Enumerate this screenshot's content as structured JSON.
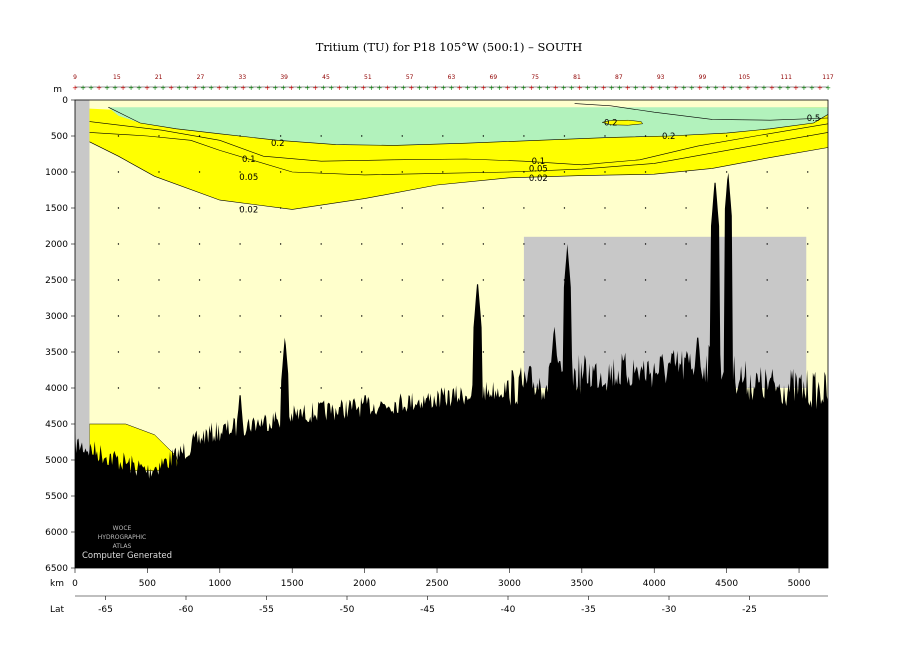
{
  "chart_data": {
    "type": "contour_section",
    "title": "Tritium (TU) for P18 105°W (500:1) – SOUTH",
    "y_unit": "m",
    "x_unit": "km",
    "lat_label": "Lat",
    "x_range": [
      0,
      5200
    ],
    "y_range": [
      0,
      6500
    ],
    "y_ticks": [
      0,
      500,
      1000,
      1500,
      2000,
      2500,
      3000,
      3500,
      4000,
      4500,
      5000,
      5500,
      6000,
      6500
    ],
    "x_ticks": [
      0,
      500,
      1000,
      1500,
      2000,
      2500,
      3000,
      3500,
      4000,
      4500,
      5000
    ],
    "lat_ticks": [
      -65,
      -60,
      -55,
      -50,
      -45,
      -40,
      -35,
      -30,
      -25
    ],
    "station_numbers": [
      "9",
      "15",
      "21",
      "27",
      "33",
      "39",
      "45",
      "51",
      "57",
      "63",
      "69",
      "75",
      "81",
      "87",
      "93",
      "99",
      "105",
      "111",
      "117"
    ],
    "contour_levels": [
      "0.5",
      "0.2",
      "0.2",
      "0.2",
      "0.1",
      "0.1",
      "0.05",
      "0.05",
      "0.02",
      "0.02"
    ],
    "colors": {
      "above_0_2": "#b2f2bc",
      "from_0_02_to_0_2": "#ffff00",
      "below_0_02": "#ffffcc",
      "no_data": "#c8c8c8",
      "bathymetry": "#000000"
    },
    "watermark": [
      "WOCE",
      "HYDROGRAPHIC",
      "ATLAS"
    ],
    "note": "Computer Generated"
  }
}
